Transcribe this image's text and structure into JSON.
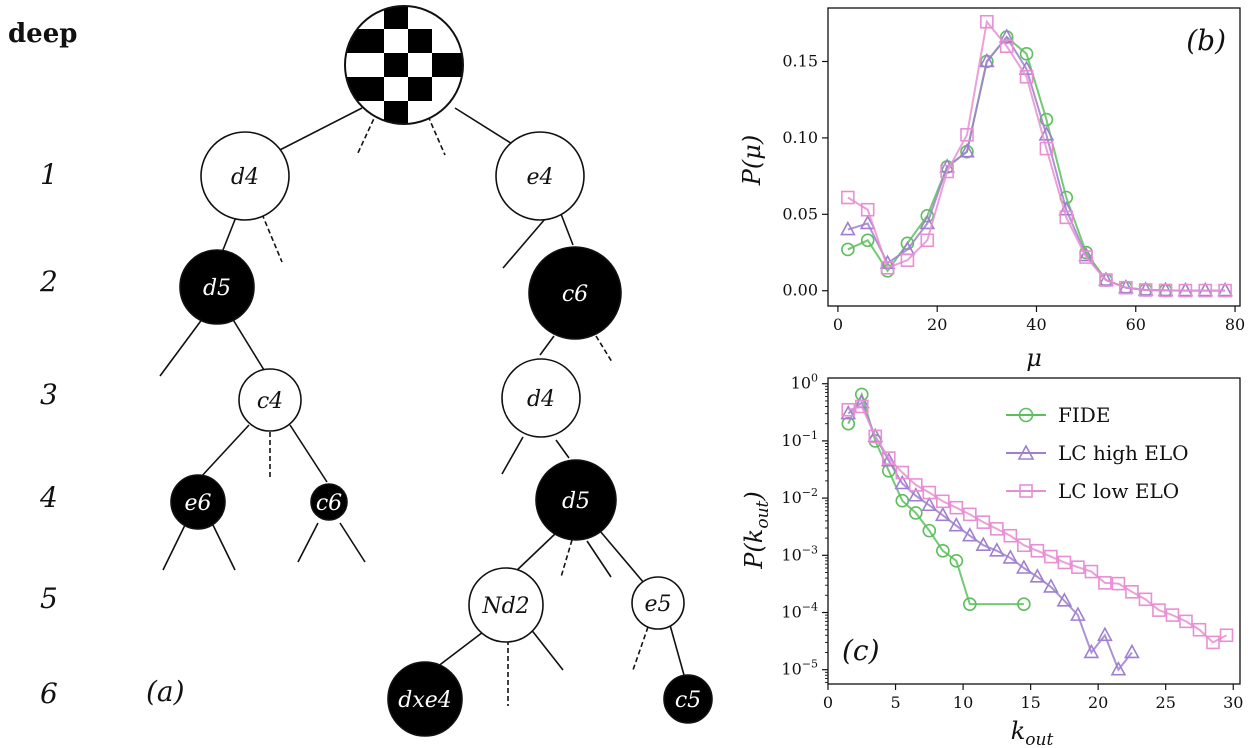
{
  "tree": {
    "deep_label": "deep",
    "depth_labels": [
      "1",
      "2",
      "3",
      "4",
      "5",
      "6"
    ],
    "panel_label": "(a)",
    "nodes": [
      {
        "id": "d4a",
        "label": "d4",
        "color": "white",
        "depth": 1
      },
      {
        "id": "e4",
        "label": "e4",
        "color": "white",
        "depth": 1
      },
      {
        "id": "d5a",
        "label": "d5",
        "color": "black",
        "depth": 2
      },
      {
        "id": "c6a",
        "label": "c6",
        "color": "black",
        "depth": 2
      },
      {
        "id": "c4",
        "label": "c4",
        "color": "white",
        "depth": 3
      },
      {
        "id": "d4b",
        "label": "d4",
        "color": "white",
        "depth": 3
      },
      {
        "id": "e6",
        "label": "e6",
        "color": "black",
        "depth": 4
      },
      {
        "id": "c6b",
        "label": "c6",
        "color": "black",
        "depth": 4
      },
      {
        "id": "d5b",
        "label": "d5",
        "color": "black",
        "depth": 4
      },
      {
        "id": "Nd2",
        "label": "Nd2",
        "color": "white",
        "depth": 5
      },
      {
        "id": "e5",
        "label": "e5",
        "color": "white",
        "depth": 5
      },
      {
        "id": "dxe4",
        "label": "dxe4",
        "color": "black",
        "depth": 6
      },
      {
        "id": "c5",
        "label": "c5",
        "color": "black",
        "depth": 6
      }
    ]
  },
  "colors": {
    "fide": "#5cbf5c",
    "lc_high": "#a07fcf",
    "lc_low": "#e88fd4"
  },
  "chart_data": [
    {
      "type": "line",
      "panel_label": "(b)",
      "xlabel": "μ",
      "ylabel": "P(μ)",
      "xlim": [
        -2,
        81
      ],
      "ylim": [
        -0.01,
        0.185
      ],
      "xticks": [
        0,
        20,
        40,
        60,
        80
      ],
      "yticks": [
        0.0,
        0.05,
        0.1,
        0.15
      ],
      "ytick_labels": [
        "0.00",
        "0.05",
        "0.10",
        "0.15"
      ],
      "series": [
        {
          "key": "fide",
          "marker": "circle",
          "x": [
            2,
            6,
            10,
            14,
            18,
            22,
            26,
            30,
            34,
            38,
            42,
            46,
            50,
            54,
            58,
            62,
            66
          ],
          "y": [
            0.027,
            0.033,
            0.013,
            0.031,
            0.049,
            0.081,
            0.091,
            0.15,
            0.166,
            0.155,
            0.112,
            0.061,
            0.025,
            0.007,
            0.002,
            0.0005,
            0.0002
          ]
        },
        {
          "key": "lc_high",
          "marker": "triangle",
          "x": [
            2,
            6,
            10,
            14,
            18,
            22,
            26,
            30,
            34,
            38,
            42,
            46,
            50,
            54,
            58,
            62,
            66,
            70,
            74,
            78
          ],
          "y": [
            0.04,
            0.044,
            0.018,
            0.027,
            0.044,
            0.081,
            0.091,
            0.15,
            0.166,
            0.145,
            0.102,
            0.053,
            0.023,
            0.007,
            0.002,
            0.0005,
            0.0002,
            0.0001,
            0.0001,
            0.0001
          ]
        },
        {
          "key": "lc_low",
          "marker": "square",
          "x": [
            2,
            6,
            10,
            14,
            18,
            22,
            26,
            30,
            34,
            38,
            42,
            46,
            50,
            54,
            58,
            62,
            66,
            70,
            74,
            78
          ],
          "y": [
            0.061,
            0.053,
            0.015,
            0.02,
            0.033,
            0.078,
            0.102,
            0.176,
            0.16,
            0.14,
            0.093,
            0.048,
            0.022,
            0.007,
            0.002,
            0.0005,
            0.0002,
            0.0001,
            0.0001,
            0.0001
          ]
        }
      ]
    },
    {
      "type": "line",
      "panel_label": "(c)",
      "xlabel": "k_out",
      "ylabel": "P(k_out)",
      "yscale": "log",
      "xlim": [
        0,
        30.5
      ],
      "ylim_log10": [
        -5.25,
        0.1
      ],
      "xticks": [
        0,
        5,
        10,
        15,
        20,
        25,
        30
      ],
      "ytick_exponents": [
        0,
        -1,
        -2,
        -3,
        -4,
        -5
      ],
      "legend": {
        "position": "upper-right",
        "entries": [
          {
            "key": "fide",
            "label": "FIDE"
          },
          {
            "key": "lc_high",
            "label": "LC high ELO"
          },
          {
            "key": "lc_low",
            "label": "LC low ELO"
          }
        ]
      },
      "series": [
        {
          "key": "fide",
          "marker": "circle",
          "x": [
            1.5,
            2.5,
            3.5,
            4.5,
            5.5,
            6.5,
            7.5,
            8.5,
            9.5,
            10.5,
            14.5
          ],
          "y": [
            0.2,
            0.65,
            0.1,
            0.03,
            0.009,
            0.0055,
            0.0027,
            0.0012,
            0.0008,
            0.00014,
            0.00014
          ]
        },
        {
          "key": "lc_high",
          "marker": "triangle",
          "x": [
            1.5,
            2.5,
            3.5,
            4.5,
            5.5,
            6.5,
            7.5,
            8.5,
            9.5,
            10.5,
            11.5,
            12.5,
            13.5,
            14.5,
            15.5,
            16.5,
            17.5,
            18.5,
            19.5,
            20.5,
            21.5,
            22.5
          ],
          "y": [
            0.3,
            0.47,
            0.12,
            0.045,
            0.018,
            0.011,
            0.0075,
            0.005,
            0.0033,
            0.0022,
            0.0015,
            0.0012,
            0.0009,
            0.0006,
            0.00042,
            0.00028,
            0.00016,
            9e-05,
            2e-05,
            4e-05,
            1e-05,
            2e-05
          ]
        },
        {
          "key": "lc_low",
          "marker": "square",
          "x": [
            1.5,
            2.5,
            3.5,
            4.5,
            5.5,
            6.5,
            7.5,
            8.5,
            9.5,
            10.5,
            11.5,
            12.5,
            13.5,
            14.5,
            15.5,
            16.5,
            17.5,
            18.5,
            19.5,
            20.5,
            21.5,
            22.5,
            23.5,
            24.5,
            25.5,
            26.5,
            27.5,
            28.5,
            29.5
          ],
          "y": [
            0.35,
            0.4,
            0.12,
            0.05,
            0.028,
            0.017,
            0.0125,
            0.0088,
            0.0068,
            0.0052,
            0.0038,
            0.0029,
            0.0022,
            0.0015,
            0.0012,
            0.00095,
            0.00075,
            0.00062,
            0.00052,
            0.00033,
            0.00032,
            0.00023,
            0.00017,
            0.00011,
            9e-05,
            7e-05,
            5e-05,
            3e-05,
            4e-05
          ]
        }
      ]
    }
  ]
}
